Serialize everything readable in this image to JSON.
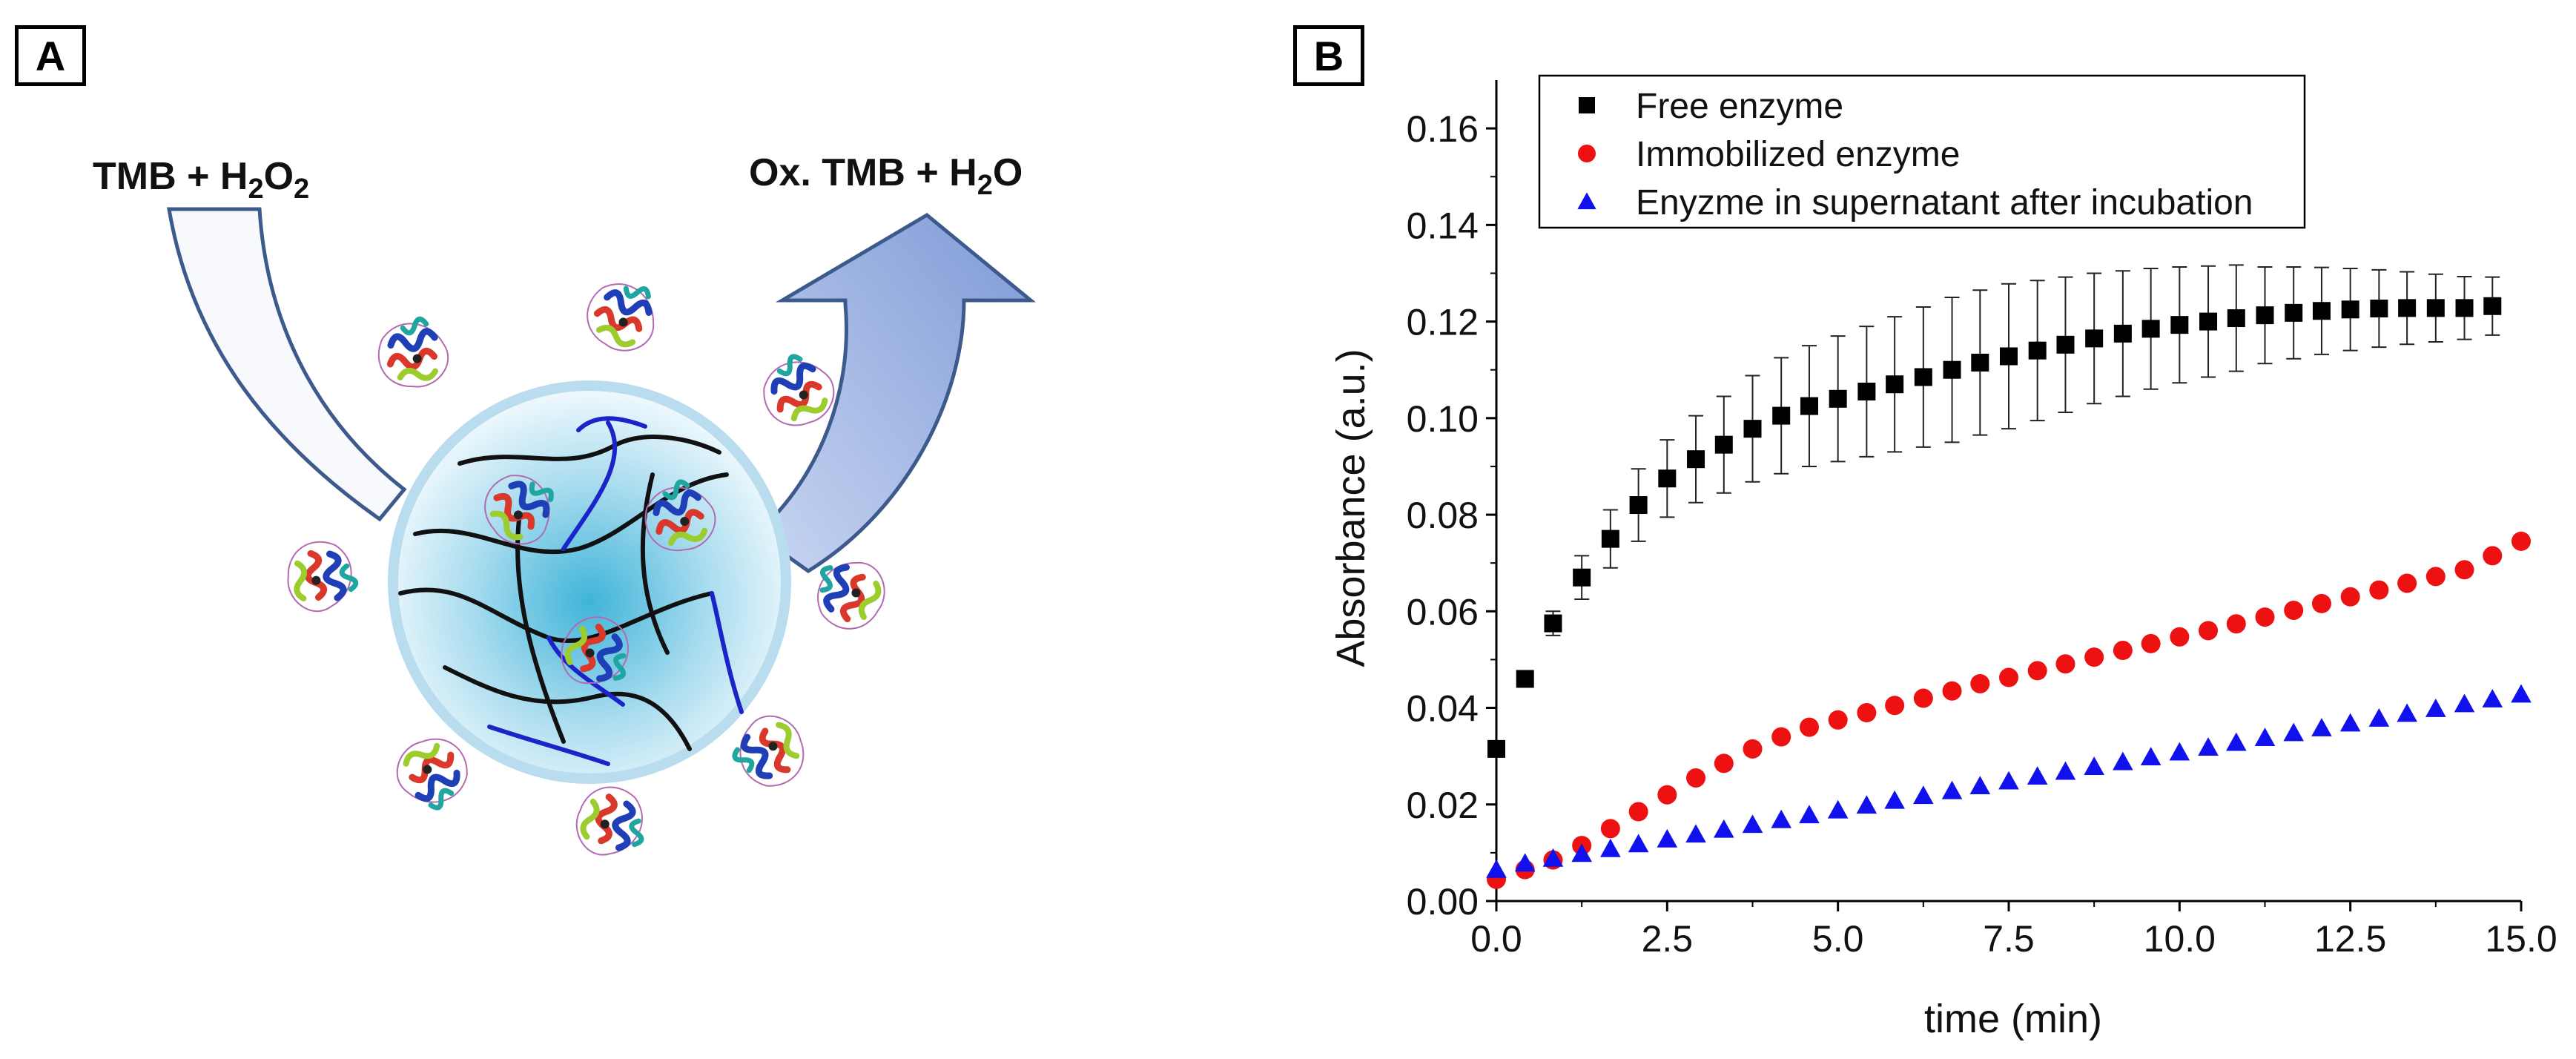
{
  "panels": {
    "a_label": "A",
    "b_label": "B"
  },
  "scheme": {
    "reactant_prefix": "TMB + H",
    "reactant_sub1": "2",
    "reactant_mid": "O",
    "reactant_sub2": "2",
    "product_prefix": "Ox. TMB + H",
    "product_sub": "2",
    "product_suffix": "O"
  },
  "chart_data": {
    "type": "scatter",
    "xlabel": "time (min)",
    "ylabel": "Absorbance (a.u.)",
    "xlim": [
      0,
      15
    ],
    "ylim": [
      0,
      0.17
    ],
    "x_ticks": [
      0,
      2.5,
      5,
      7.5,
      10,
      12.5,
      15
    ],
    "x_tick_labels": [
      "0.0",
      "2.5",
      "5.0",
      "7.5",
      "10.0",
      "12.5",
      "15.0"
    ],
    "y_ticks": [
      0,
      0.02,
      0.04,
      0.06,
      0.08,
      0.1,
      0.12,
      0.14,
      0.16
    ],
    "y_tick_labels": [
      "0.00",
      "0.02",
      "0.04",
      "0.06",
      "0.08",
      "0.10",
      "0.12",
      "0.14",
      "0.16"
    ],
    "legend_position": "top",
    "series": [
      {
        "name": "Free enzyme",
        "marker": "square",
        "color": "#000000",
        "x": [
          0,
          0.42,
          0.83,
          1.25,
          1.67,
          2.08,
          2.5,
          2.92,
          3.33,
          3.75,
          4.17,
          4.58,
          5.0,
          5.42,
          5.83,
          6.25,
          6.67,
          7.08,
          7.5,
          7.92,
          8.33,
          8.75,
          9.17,
          9.58,
          10.0,
          10.42,
          10.83,
          11.25,
          11.67,
          12.08,
          12.5,
          12.92,
          13.33,
          13.75,
          14.17,
          14.58
        ],
        "y": [
          0.0315,
          0.046,
          0.0575,
          0.067,
          0.075,
          0.082,
          0.0875,
          0.0915,
          0.0945,
          0.0978,
          0.1005,
          0.1025,
          0.104,
          0.1055,
          0.107,
          0.1085,
          0.11,
          0.1115,
          0.1128,
          0.114,
          0.1152,
          0.1165,
          0.1175,
          0.1185,
          0.1193,
          0.12,
          0.1207,
          0.1213,
          0.1218,
          0.1222,
          0.1225,
          0.1227,
          0.1228,
          0.1228,
          0.1228,
          0.1232
        ],
        "err": [
          0,
          0,
          0.0025,
          0.0045,
          0.006,
          0.0075,
          0.008,
          0.009,
          0.01,
          0.011,
          0.012,
          0.0125,
          0.013,
          0.0135,
          0.014,
          0.0145,
          0.015,
          0.015,
          0.015,
          0.0145,
          0.014,
          0.0135,
          0.013,
          0.0125,
          0.012,
          0.0115,
          0.011,
          0.01,
          0.0095,
          0.009,
          0.0085,
          0.008,
          0.0075,
          0.007,
          0.0065,
          0.006
        ]
      },
      {
        "name": "Immobilized enzyme",
        "marker": "circle",
        "color": "#ee1111",
        "x": [
          0,
          0.42,
          0.83,
          1.25,
          1.67,
          2.08,
          2.5,
          2.92,
          3.33,
          3.75,
          4.17,
          4.58,
          5.0,
          5.42,
          5.83,
          6.25,
          6.67,
          7.08,
          7.5,
          7.92,
          8.33,
          8.75,
          9.17,
          9.58,
          10.0,
          10.42,
          10.83,
          11.25,
          11.67,
          12.08,
          12.5,
          12.92,
          13.33,
          13.75,
          14.17,
          14.58,
          15.0
        ],
        "y": [
          0.0045,
          0.0065,
          0.0085,
          0.0115,
          0.015,
          0.0185,
          0.022,
          0.0255,
          0.0285,
          0.0315,
          0.034,
          0.036,
          0.0375,
          0.039,
          0.0405,
          0.042,
          0.0435,
          0.045,
          0.0463,
          0.0477,
          0.0491,
          0.0505,
          0.0519,
          0.0533,
          0.0547,
          0.056,
          0.0574,
          0.0588,
          0.0602,
          0.0616,
          0.063,
          0.0644,
          0.0658,
          0.0672,
          0.0686,
          0.0715,
          0.0745
        ]
      },
      {
        "name": "Enyzme in supernatant after incubation",
        "marker": "triangle",
        "color": "#1111ee",
        "x": [
          0,
          0.42,
          0.83,
          1.25,
          1.67,
          2.08,
          2.5,
          2.92,
          3.33,
          3.75,
          4.17,
          4.58,
          5.0,
          5.42,
          5.83,
          6.25,
          6.67,
          7.08,
          7.5,
          7.92,
          8.33,
          8.75,
          9.17,
          9.58,
          10.0,
          10.42,
          10.83,
          11.25,
          11.67,
          12.08,
          12.5,
          12.92,
          13.33,
          13.75,
          14.17,
          14.58,
          15.0
        ],
        "y": [
          0.0065,
          0.0078,
          0.0088,
          0.0098,
          0.0108,
          0.0118,
          0.0128,
          0.0138,
          0.0148,
          0.0158,
          0.0168,
          0.0178,
          0.0188,
          0.0198,
          0.0208,
          0.0218,
          0.0228,
          0.0238,
          0.0248,
          0.0258,
          0.0268,
          0.0278,
          0.0288,
          0.0298,
          0.0308,
          0.0318,
          0.0328,
          0.0338,
          0.0348,
          0.0358,
          0.0368,
          0.0378,
          0.0388,
          0.0398,
          0.0408,
          0.0418,
          0.0428
        ]
      }
    ]
  }
}
